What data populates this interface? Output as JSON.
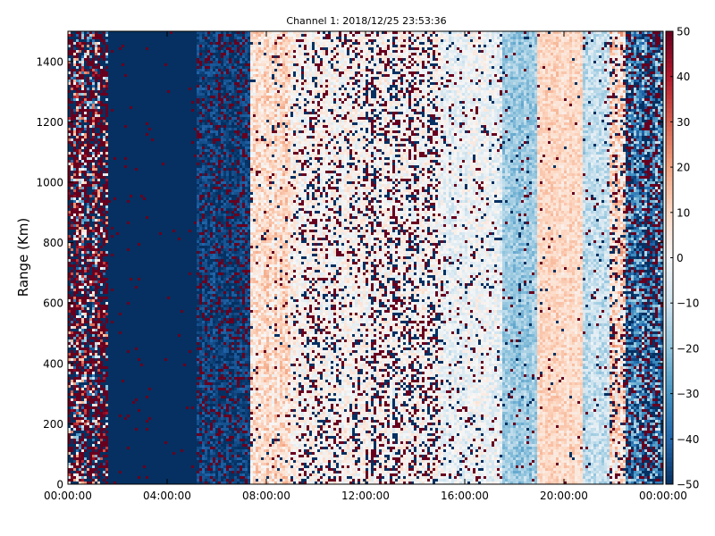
{
  "chart_data": {
    "type": "heatmap",
    "title": "Channel 1: 2018/12/25 23:53:36",
    "xlabel": "",
    "ylabel": "Range (Km)",
    "xlim_hours": [
      0,
      24
    ],
    "ylim": [
      0,
      1500
    ],
    "xticks": [
      {
        "hours": 0,
        "label": "00:00:00"
      },
      {
        "hours": 4,
        "label": "04:00:00"
      },
      {
        "hours": 8,
        "label": "08:00:00"
      },
      {
        "hours": 12,
        "label": "12:00:00"
      },
      {
        "hours": 16,
        "label": "16:00:00"
      },
      {
        "hours": 20,
        "label": "20:00:00"
      },
      {
        "hours": 24,
        "label": "00:00:00"
      }
    ],
    "yticks": [
      0,
      200,
      400,
      600,
      800,
      1000,
      1200,
      1400
    ],
    "colorbar": {
      "colormap": "RdBu_r",
      "vmin": -50,
      "vmax": 50,
      "ticks": [
        -50,
        -40,
        -30,
        -20,
        -10,
        0,
        10,
        20,
        30,
        40,
        50
      ]
    },
    "grid": false,
    "value_profile_by_time": [
      {
        "start_hours": 0.0,
        "end_hours": 1.6,
        "mean": 10,
        "noise": 60,
        "outlier_prob": 0.55
      },
      {
        "start_hours": 1.6,
        "end_hours": 5.2,
        "mean": -50,
        "noise": 0,
        "outlier_prob": 0.02
      },
      {
        "start_hours": 5.2,
        "end_hours": 7.3,
        "mean": -45,
        "noise": 5,
        "outlier_prob": 0.35
      },
      {
        "start_hours": 7.3,
        "end_hours": 9.0,
        "mean": 8,
        "noise": 10,
        "outlier_prob": 0.05
      },
      {
        "start_hours": 9.0,
        "end_hours": 12.0,
        "mean": 2,
        "noise": 8,
        "outlier_prob": 0.22
      },
      {
        "start_hours": 12.0,
        "end_hours": 15.0,
        "mean": 0,
        "noise": 8,
        "outlier_prob": 0.32
      },
      {
        "start_hours": 15.0,
        "end_hours": 17.5,
        "mean": -3,
        "noise": 8,
        "outlier_prob": 0.1
      },
      {
        "start_hours": 17.5,
        "end_hours": 18.9,
        "mean": -18,
        "noise": 7,
        "outlier_prob": 0.04
      },
      {
        "start_hours": 18.9,
        "end_hours": 20.8,
        "mean": 10,
        "noise": 6,
        "outlier_prob": 0.02
      },
      {
        "start_hours": 20.8,
        "end_hours": 21.8,
        "mean": -12,
        "noise": 8,
        "outlier_prob": 0.04
      },
      {
        "start_hours": 21.8,
        "end_hours": 22.5,
        "mean": 5,
        "noise": 15,
        "outlier_prob": 0.2
      },
      {
        "start_hours": 22.5,
        "end_hours": 24.0,
        "mean": -30,
        "noise": 18,
        "outlier_prob": 0.35
      }
    ]
  }
}
